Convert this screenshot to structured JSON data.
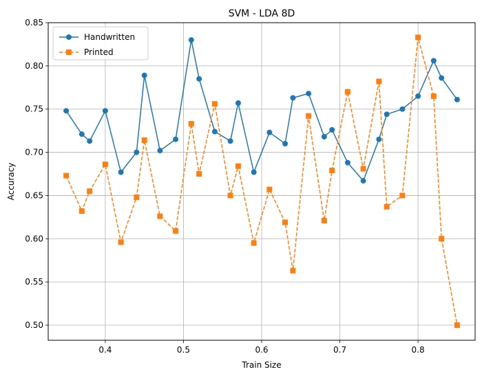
{
  "chart_data": {
    "type": "line",
    "title": "SVM - LDA 8D",
    "xlabel": "Train Size",
    "ylabel": "Accuracy",
    "xlim": [
      0.327,
      0.873
    ],
    "ylim": [
      0.4825,
      0.85
    ],
    "xticks": [
      0.4,
      0.5,
      0.6,
      0.7,
      0.8
    ],
    "xtick_labels": [
      "0.4",
      "0.5",
      "0.6",
      "0.7",
      "0.8"
    ],
    "yticks": [
      0.5,
      0.55,
      0.6,
      0.65,
      0.7,
      0.75,
      0.8,
      0.85
    ],
    "ytick_labels": [
      "0.50",
      "0.55",
      "0.60",
      "0.65",
      "0.70",
      "0.75",
      "0.80",
      "0.85"
    ],
    "grid": true,
    "legend_position": "upper-left",
    "x": [
      0.35,
      0.37,
      0.38,
      0.4,
      0.42,
      0.44,
      0.45,
      0.47,
      0.49,
      0.51,
      0.52,
      0.54,
      0.56,
      0.57,
      0.59,
      0.61,
      0.63,
      0.64,
      0.66,
      0.68,
      0.69,
      0.71,
      0.73,
      0.75,
      0.76,
      0.78,
      0.8,
      0.82,
      0.83,
      0.85
    ],
    "series": [
      {
        "name": "Handwritten",
        "color": "#1f77b4",
        "marker": "circle",
        "line_style": "solid",
        "values": [
          0.748,
          0.721,
          0.713,
          0.748,
          0.677,
          0.7,
          0.789,
          0.702,
          0.715,
          0.83,
          0.785,
          0.724,
          0.713,
          0.757,
          0.677,
          0.723,
          0.71,
          0.763,
          0.768,
          0.718,
          0.726,
          0.688,
          0.667,
          0.715,
          0.744,
          0.75,
          0.765,
          0.806,
          0.786,
          0.761
        ]
      },
      {
        "name": "Printed",
        "color": "#ff7f0e",
        "marker": "square",
        "line_style": "dashed",
        "values": [
          0.673,
          0.632,
          0.655,
          0.686,
          0.596,
          0.648,
          0.714,
          0.626,
          0.609,
          0.733,
          0.675,
          0.756,
          0.65,
          0.684,
          0.595,
          0.657,
          0.619,
          0.563,
          0.742,
          0.621,
          0.679,
          0.77,
          0.681,
          0.782,
          0.637,
          0.65,
          0.833,
          0.765,
          0.6,
          0.5
        ]
      }
    ]
  }
}
